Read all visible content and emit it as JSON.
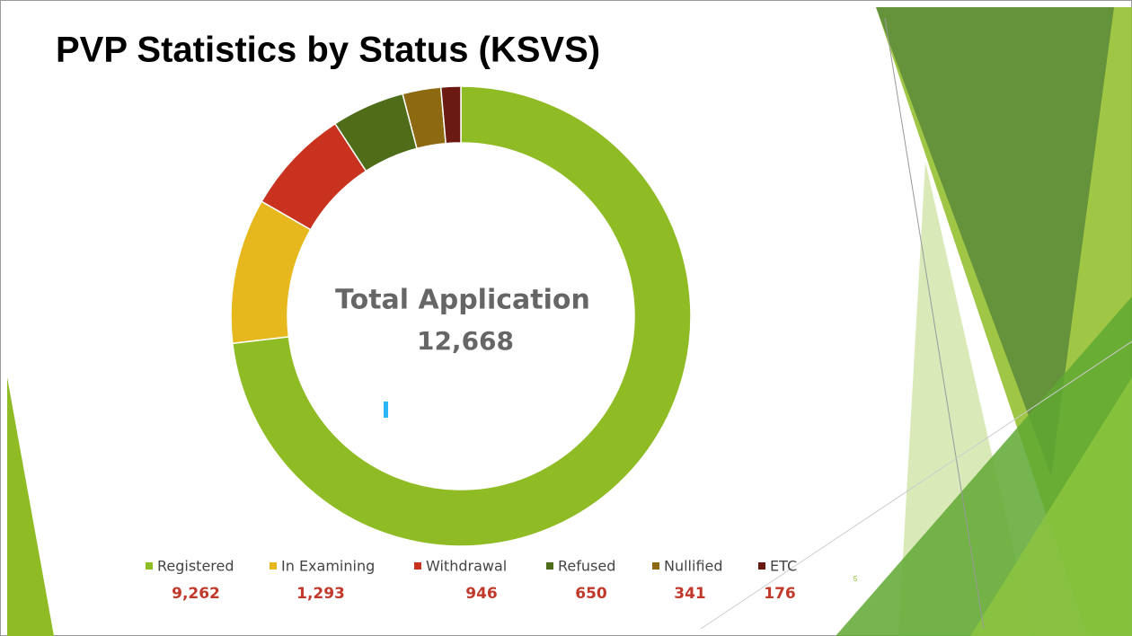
{
  "chart_data": {
    "type": "donut",
    "title": "PVP Statistics by Status (KSVS)",
    "center_label": "Total Application",
    "total": {
      "value": 12668,
      "label": "12,668"
    },
    "categories": [
      "Registered",
      "In Examining",
      "Withdrawal",
      "Refused",
      "Nullified",
      "ETC"
    ],
    "values": [
      9262,
      1293,
      946,
      650,
      341,
      176
    ],
    "value_labels": [
      "9,262",
      "1,293",
      "946",
      "650",
      "341",
      "176"
    ],
    "colors": [
      "#8fbc24",
      "#e6b81e",
      "#c8321e",
      "#4f6d19",
      "#8d6a12",
      "#6b1a12"
    ],
    "slide_number": "5"
  }
}
